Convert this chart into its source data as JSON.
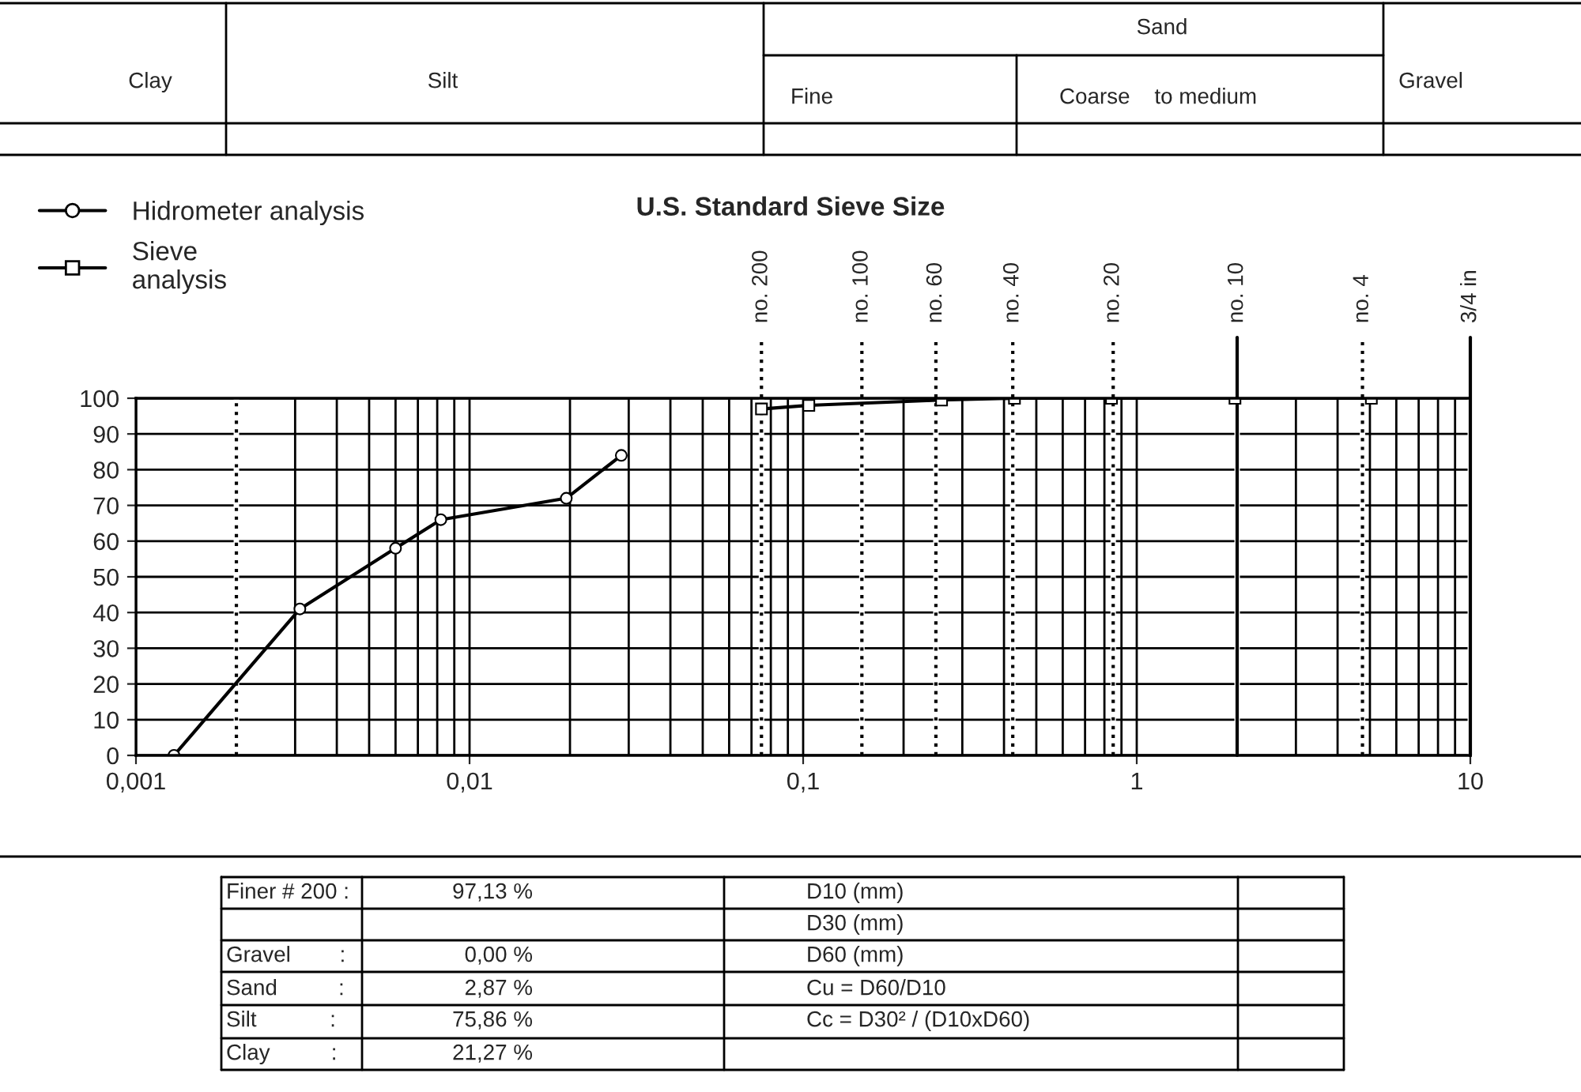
{
  "chart_data": {
    "type": "line",
    "x2label": "U.S. Standard Sieve Size",
    "series": [
      {
        "name": "Hidrometer analysis",
        "color": "#000000",
        "marker": "circle",
        "x": [
          0.0013,
          0.0031,
          0.006,
          0.0082,
          0.0195,
          0.0285
        ],
        "values": [
          0,
          41,
          58,
          66,
          72,
          84
        ]
      },
      {
        "name": "Sieve\nanalysis",
        "color": "#000000",
        "marker": "square",
        "x": [
          0.075,
          0.104,
          0.26,
          0.43,
          0.84,
          1.97,
          5.05
        ],
        "values": [
          97,
          98,
          99.5,
          100,
          100,
          100,
          100
        ]
      }
    ],
    "log": "x",
    "xlim": [
      0.001,
      10
    ],
    "xticks": [
      {
        "value": 0.001,
        "label": "0,001"
      },
      {
        "value": 0.01,
        "label": "0,01"
      },
      {
        "value": 0.1,
        "label": "0,1"
      },
      1,
      10
    ],
    "ylim": [
      0,
      100
    ],
    "yticks": [
      0,
      10,
      20,
      30,
      40,
      50,
      60,
      70,
      80,
      90,
      100
    ],
    "ref_lines": [
      {
        "axis": "x",
        "value": 0.002,
        "line_style": "dotted",
        "color": "#000000"
      },
      {
        "axis": "x",
        "value": 0.075,
        "label": "no. 200",
        "line_style": "dotted",
        "color": "#000000"
      },
      {
        "axis": "x",
        "value": 0.15,
        "label": "no. 100",
        "line_style": "dotted",
        "color": "#000000"
      },
      {
        "axis": "x",
        "value": 0.25,
        "label": "no. 60",
        "line_style": "dotted",
        "color": "#000000"
      },
      {
        "axis": "x",
        "value": 0.425,
        "label": "no. 40",
        "line_style": "dotted",
        "color": "#000000"
      },
      {
        "axis": "x",
        "value": 0.85,
        "label": "no. 20",
        "line_style": "dotted",
        "color": "#000000"
      },
      {
        "axis": "x",
        "value": 2,
        "label": "no. 10",
        "line_style": "solid",
        "color": "#000000"
      },
      {
        "axis": "x",
        "value": 4.75,
        "label": "no. 4",
        "line_style": "dotted",
        "color": "#000000"
      },
      {
        "axis": "x",
        "value": 10,
        "label": "3/4 in",
        "line_style": "solid",
        "color": "#000000"
      }
    ],
    "grid": true,
    "legend": "top left",
    "annotations": [
      "Clay",
      "Silt",
      "Sand",
      "Fine",
      "Coarse    to medium",
      "Gravel",
      "Finer # 200 :",
      "97,13 %",
      "D10 (mm)",
      "D30 (mm)",
      "Gravel        :",
      "0,00 %",
      "D60 (mm)",
      "Sand          :",
      "2,87 %",
      "Cu = D60/D10",
      "Silt            :",
      "75,86 %",
      "Cc = D30² / (D10xD60)",
      "Clay          :",
      "21,27 %"
    ]
  }
}
